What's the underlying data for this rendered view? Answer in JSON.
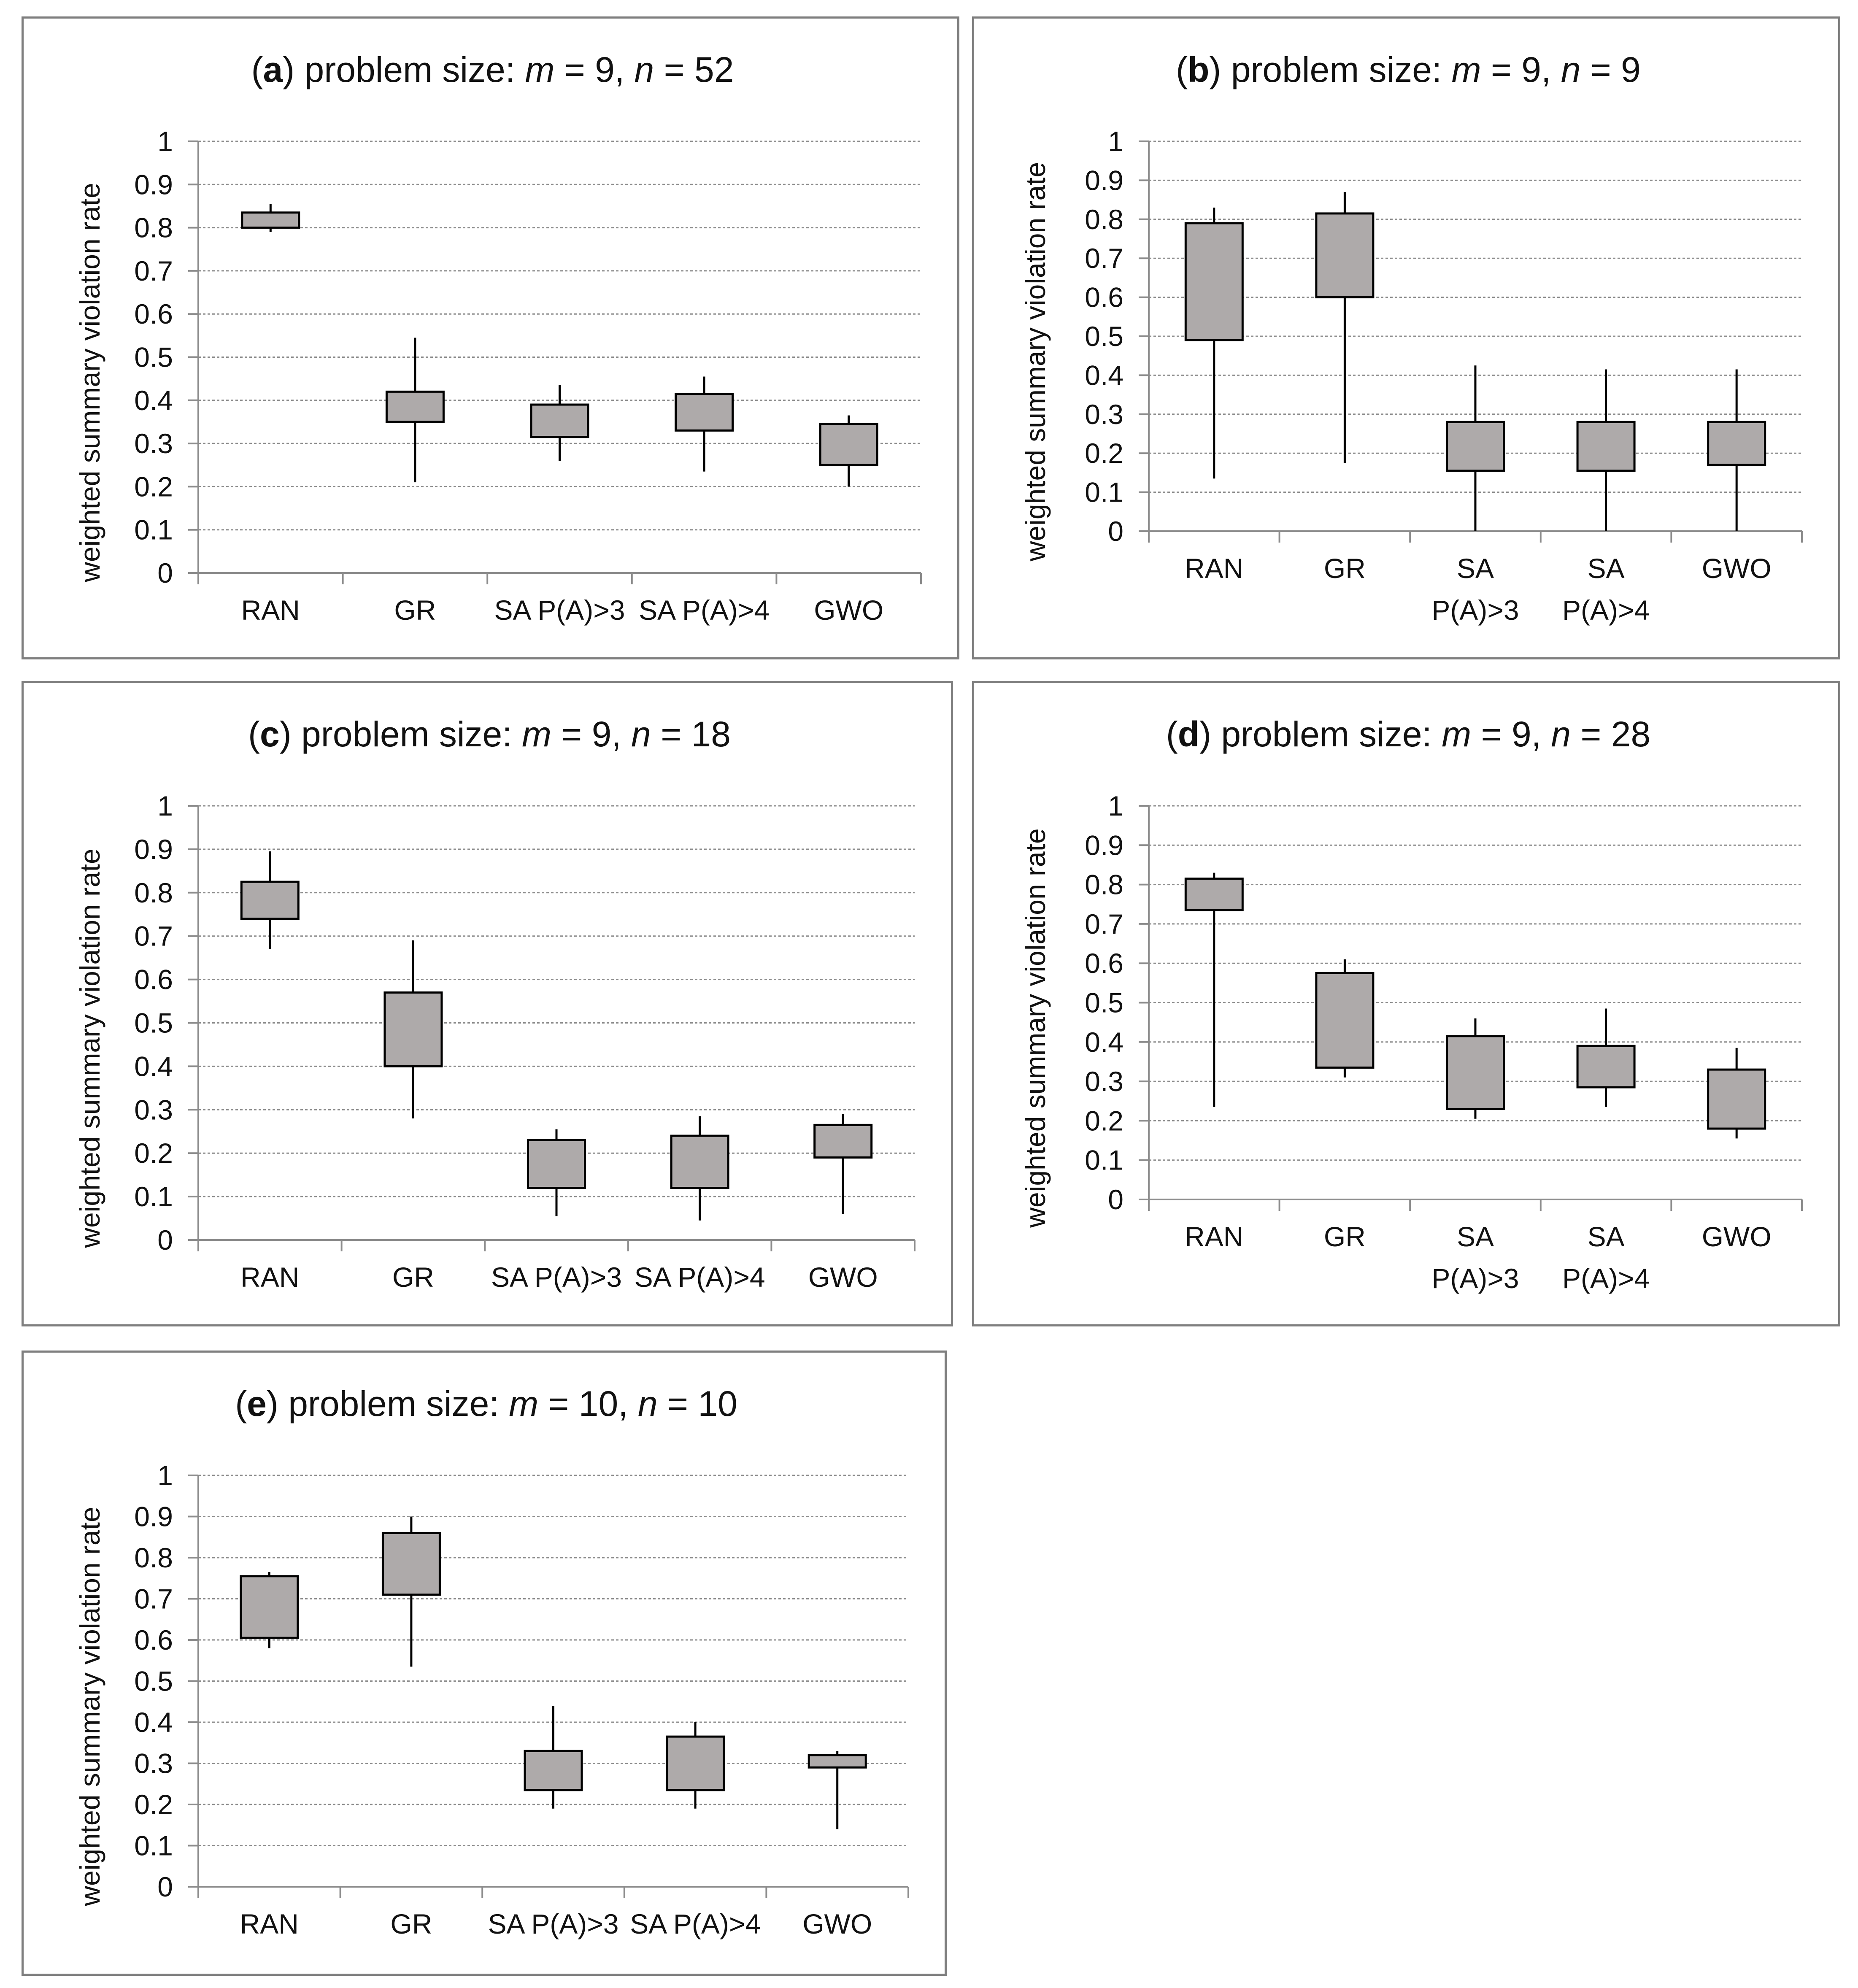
{
  "chart_data": [
    {
      "id": "a",
      "type": "boxplot",
      "title": {
        "label": "a",
        "prefix": "problem size: ",
        "m_var": "m",
        "m_value": "9",
        "n_var": "n",
        "n_value": "52"
      },
      "ylabel": "weighted summary violation rate",
      "ylim": [
        0,
        1
      ],
      "ticks": [
        "0",
        "0.1",
        "0.2",
        "0.3",
        "0.4",
        "0.5",
        "0.6",
        "0.7",
        "0.8",
        "0.9",
        "1"
      ],
      "categories": [
        [
          "RAN"
        ],
        [
          "GR"
        ],
        [
          "SA P(A)>3"
        ],
        [
          "SA P(A)>4"
        ],
        [
          "GWO"
        ]
      ],
      "series": [
        {
          "name": "RAN",
          "min": 0.79,
          "q1": 0.8,
          "q3": 0.835,
          "max": 0.855
        },
        {
          "name": "GR",
          "min": 0.21,
          "q1": 0.35,
          "q3": 0.42,
          "max": 0.545
        },
        {
          "name": "SA P(A)>3",
          "min": 0.26,
          "q1": 0.315,
          "q3": 0.39,
          "max": 0.435
        },
        {
          "name": "SA P(A)>4",
          "min": 0.235,
          "q1": 0.33,
          "q3": 0.415,
          "max": 0.455
        },
        {
          "name": "GWO",
          "min": 0.2,
          "q1": 0.25,
          "q3": 0.345,
          "max": 0.365
        }
      ]
    },
    {
      "id": "b",
      "type": "boxplot",
      "title": {
        "label": "b",
        "prefix": "problem size: ",
        "m_var": "m",
        "m_value": "9",
        "n_var": "n",
        "n_value": "9"
      },
      "ylabel": "weighted summary violation rate",
      "ylim": [
        0,
        1
      ],
      "ticks": [
        "0",
        "0.1",
        "0.2",
        "0.3",
        "0.4",
        "0.5",
        "0.6",
        "0.7",
        "0.8",
        "0.9",
        "1"
      ],
      "categories": [
        [
          "RAN"
        ],
        [
          "GR"
        ],
        [
          "SA",
          "P(A)>3"
        ],
        [
          "SA",
          "P(A)>4"
        ],
        [
          "GWO"
        ]
      ],
      "series": [
        {
          "name": "RAN",
          "min": 0.135,
          "q1": 0.49,
          "q3": 0.79,
          "max": 0.83
        },
        {
          "name": "GR",
          "min": 0.175,
          "q1": 0.6,
          "q3": 0.815,
          "max": 0.87
        },
        {
          "name": "SA P(A)>3",
          "min": 0.0,
          "q1": 0.155,
          "q3": 0.28,
          "max": 0.425
        },
        {
          "name": "SA P(A)>4",
          "min": 0.0,
          "q1": 0.155,
          "q3": 0.28,
          "max": 0.415
        },
        {
          "name": "GWO",
          "min": 0.0,
          "q1": 0.17,
          "q3": 0.28,
          "max": 0.415
        }
      ]
    },
    {
      "id": "c",
      "type": "boxplot",
      "title": {
        "label": "c",
        "prefix": "problem size: ",
        "m_var": "m",
        "m_value": "9",
        "n_var": "n",
        "n_value": "18"
      },
      "ylabel": "weighted summary violation rate",
      "ylim": [
        0,
        1
      ],
      "ticks": [
        "0",
        "0.1",
        "0.2",
        "0.3",
        "0.4",
        "0.5",
        "0.6",
        "0.7",
        "0.8",
        "0.9",
        "1"
      ],
      "categories": [
        [
          "RAN"
        ],
        [
          "GR"
        ],
        [
          "SA P(A)>3"
        ],
        [
          "SA P(A)>4"
        ],
        [
          "GWO"
        ]
      ],
      "series": [
        {
          "name": "RAN",
          "min": 0.67,
          "q1": 0.74,
          "q3": 0.825,
          "max": 0.895
        },
        {
          "name": "GR",
          "min": 0.28,
          "q1": 0.4,
          "q3": 0.57,
          "max": 0.69
        },
        {
          "name": "SA P(A)>3",
          "min": 0.055,
          "q1": 0.12,
          "q3": 0.23,
          "max": 0.255
        },
        {
          "name": "SA P(A)>4",
          "min": 0.045,
          "q1": 0.12,
          "q3": 0.24,
          "max": 0.285
        },
        {
          "name": "GWO",
          "min": 0.06,
          "q1": 0.19,
          "q3": 0.265,
          "max": 0.29
        }
      ]
    },
    {
      "id": "d",
      "type": "boxplot",
      "title": {
        "label": "d",
        "prefix": "problem size: ",
        "m_var": "m",
        "m_value": "9",
        "n_var": "n",
        "n_value": "28"
      },
      "ylabel": "weighted summary violation rate",
      "ylim": [
        0,
        1
      ],
      "ticks": [
        "0",
        "0.1",
        "0.2",
        "0.3",
        "0.4",
        "0.5",
        "0.6",
        "0.7",
        "0.8",
        "0.9",
        "1"
      ],
      "categories": [
        [
          "RAN"
        ],
        [
          "GR"
        ],
        [
          "SA",
          "P(A)>3"
        ],
        [
          "SA",
          "P(A)>4"
        ],
        [
          "GWO"
        ]
      ],
      "series": [
        {
          "name": "RAN",
          "min": 0.235,
          "q1": 0.735,
          "q3": 0.815,
          "max": 0.83
        },
        {
          "name": "GR",
          "min": 0.31,
          "q1": 0.335,
          "q3": 0.575,
          "max": 0.61
        },
        {
          "name": "SA P(A)>3",
          "min": 0.205,
          "q1": 0.23,
          "q3": 0.415,
          "max": 0.46
        },
        {
          "name": "SA P(A)>4",
          "min": 0.235,
          "q1": 0.285,
          "q3": 0.39,
          "max": 0.485
        },
        {
          "name": "GWO",
          "min": 0.155,
          "q1": 0.18,
          "q3": 0.33,
          "max": 0.385
        }
      ]
    },
    {
      "id": "e",
      "type": "boxplot",
      "title": {
        "label": "e",
        "prefix": "problem size: ",
        "m_var": "m",
        "m_value": "10",
        "n_var": "n",
        "n_value": "10"
      },
      "ylabel": "weighted summary violation rate",
      "ylim": [
        0,
        1
      ],
      "ticks": [
        "0",
        "0.1",
        "0.2",
        "0.3",
        "0.4",
        "0.5",
        "0.6",
        "0.7",
        "0.8",
        "0.9",
        "1"
      ],
      "categories": [
        [
          "RAN"
        ],
        [
          "GR"
        ],
        [
          "SA P(A)>3"
        ],
        [
          "SA P(A)>4"
        ],
        [
          "GWO"
        ]
      ],
      "series": [
        {
          "name": "RAN",
          "min": 0.58,
          "q1": 0.605,
          "q3": 0.755,
          "max": 0.765
        },
        {
          "name": "GR",
          "min": 0.535,
          "q1": 0.71,
          "q3": 0.86,
          "max": 0.9
        },
        {
          "name": "SA P(A)>3",
          "min": 0.19,
          "q1": 0.235,
          "q3": 0.33,
          "max": 0.44
        },
        {
          "name": "SA P(A)>4",
          "min": 0.19,
          "q1": 0.235,
          "q3": 0.365,
          "max": 0.4
        },
        {
          "name": "GWO",
          "min": 0.14,
          "q1": 0.29,
          "q3": 0.32,
          "max": 0.33
        }
      ]
    }
  ]
}
